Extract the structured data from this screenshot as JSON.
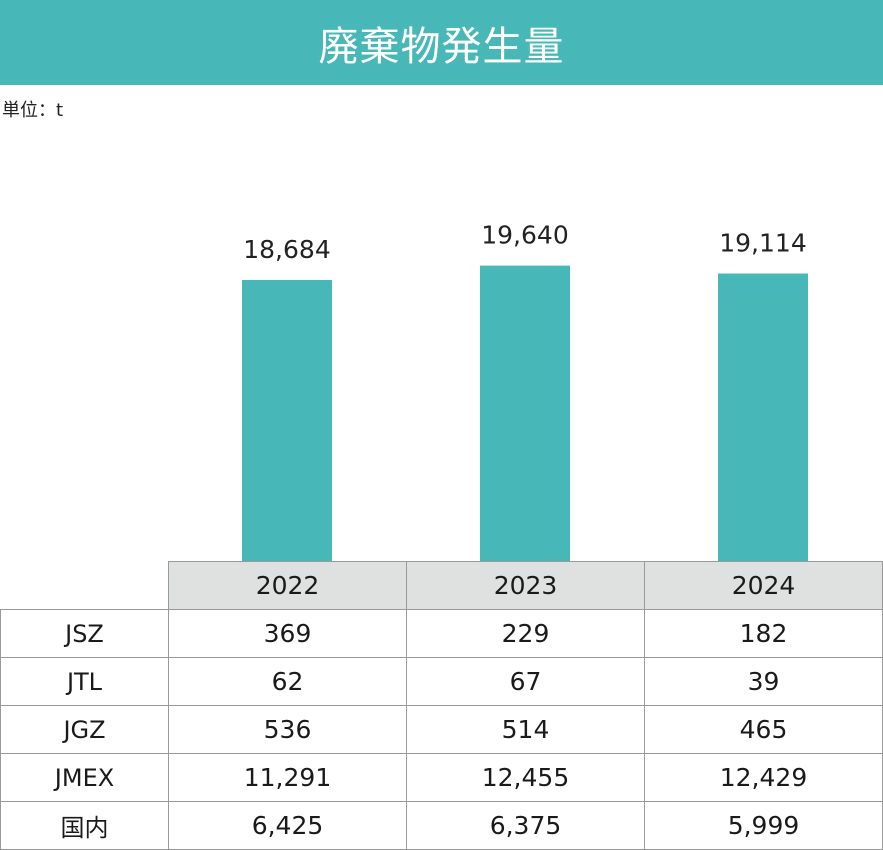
{
  "header": {
    "title": "廃棄物発生量"
  },
  "unit_label": "単位：t",
  "colors": {
    "accent": "#48b7b7",
    "header_bg": "#dfe0e0",
    "grid": "#9a9a9a"
  },
  "chart_data": {
    "type": "bar",
    "title": "廃棄物発生量",
    "categories": [
      "2022",
      "2023",
      "2024"
    ],
    "values": [
      18684,
      19640,
      19114
    ],
    "value_labels": [
      "18,684",
      "19,640",
      "19,114"
    ],
    "ylabel": "単位：t",
    "xlabel": "",
    "ylim": [
      0,
      20000
    ],
    "grid": false,
    "legend": "none"
  },
  "table": {
    "years": [
      "2022",
      "2023",
      "2024"
    ],
    "rows": [
      {
        "label": "JSZ",
        "values": [
          "369",
          "229",
          "182"
        ]
      },
      {
        "label": "JTL",
        "values": [
          "62",
          "67",
          "39"
        ]
      },
      {
        "label": "JGZ",
        "values": [
          "536",
          "514",
          "465"
        ]
      },
      {
        "label": "JMEX",
        "values": [
          "11,291",
          "12,455",
          "12,429"
        ]
      },
      {
        "label": "国内",
        "values": [
          "6,425",
          "6,375",
          "5,999"
        ]
      }
    ]
  }
}
